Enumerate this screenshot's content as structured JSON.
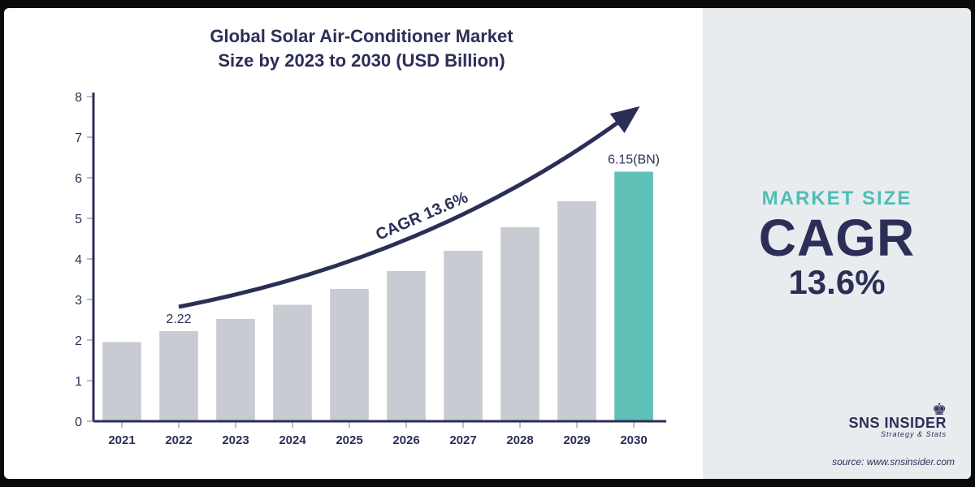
{
  "title_line1": "Global Solar Air-Conditioner Market",
  "title_line2": "Size by 2023 to 2030 (USD Billion)",
  "chart": {
    "type": "bar",
    "categories": [
      "2021",
      "2022",
      "2023",
      "2024",
      "2025",
      "2026",
      "2027",
      "2028",
      "2029",
      "2030"
    ],
    "values": [
      1.95,
      2.22,
      2.52,
      2.87,
      3.26,
      3.7,
      4.2,
      4.78,
      5.42,
      6.15
    ],
    "bar_color_default": "#c9cbd3",
    "bar_color_highlight": "#5fc0b7",
    "highlight_index": 9,
    "ylim": [
      0,
      8
    ],
    "ytick_step": 1,
    "axis_color": "#2b2f57",
    "tick_color": "#bfbfbf",
    "tick_font_size": 16,
    "xlabel_font_size": 15,
    "axis_width": 3,
    "bar_gap_ratio": 0.32,
    "curve_color": "#2b2f57",
    "curve_width": 5,
    "curve_label": "CAGR  13.6%",
    "curve_label_fontsize": 20,
    "value_label_first": "2.22",
    "value_label_last": "6.15(BN)",
    "value_label_fontsize": 16
  },
  "side": {
    "line1": "MARKET SIZE",
    "line2": "CAGR",
    "line3": "13.6%",
    "bg": "#e9ecef",
    "accent": "#4fbeb3",
    "dark": "#2b2f57"
  },
  "logo": {
    "name": "SNS INSIDER",
    "tagline": "Strategy & Stats"
  },
  "source": "source: www.snsinsider.com"
}
